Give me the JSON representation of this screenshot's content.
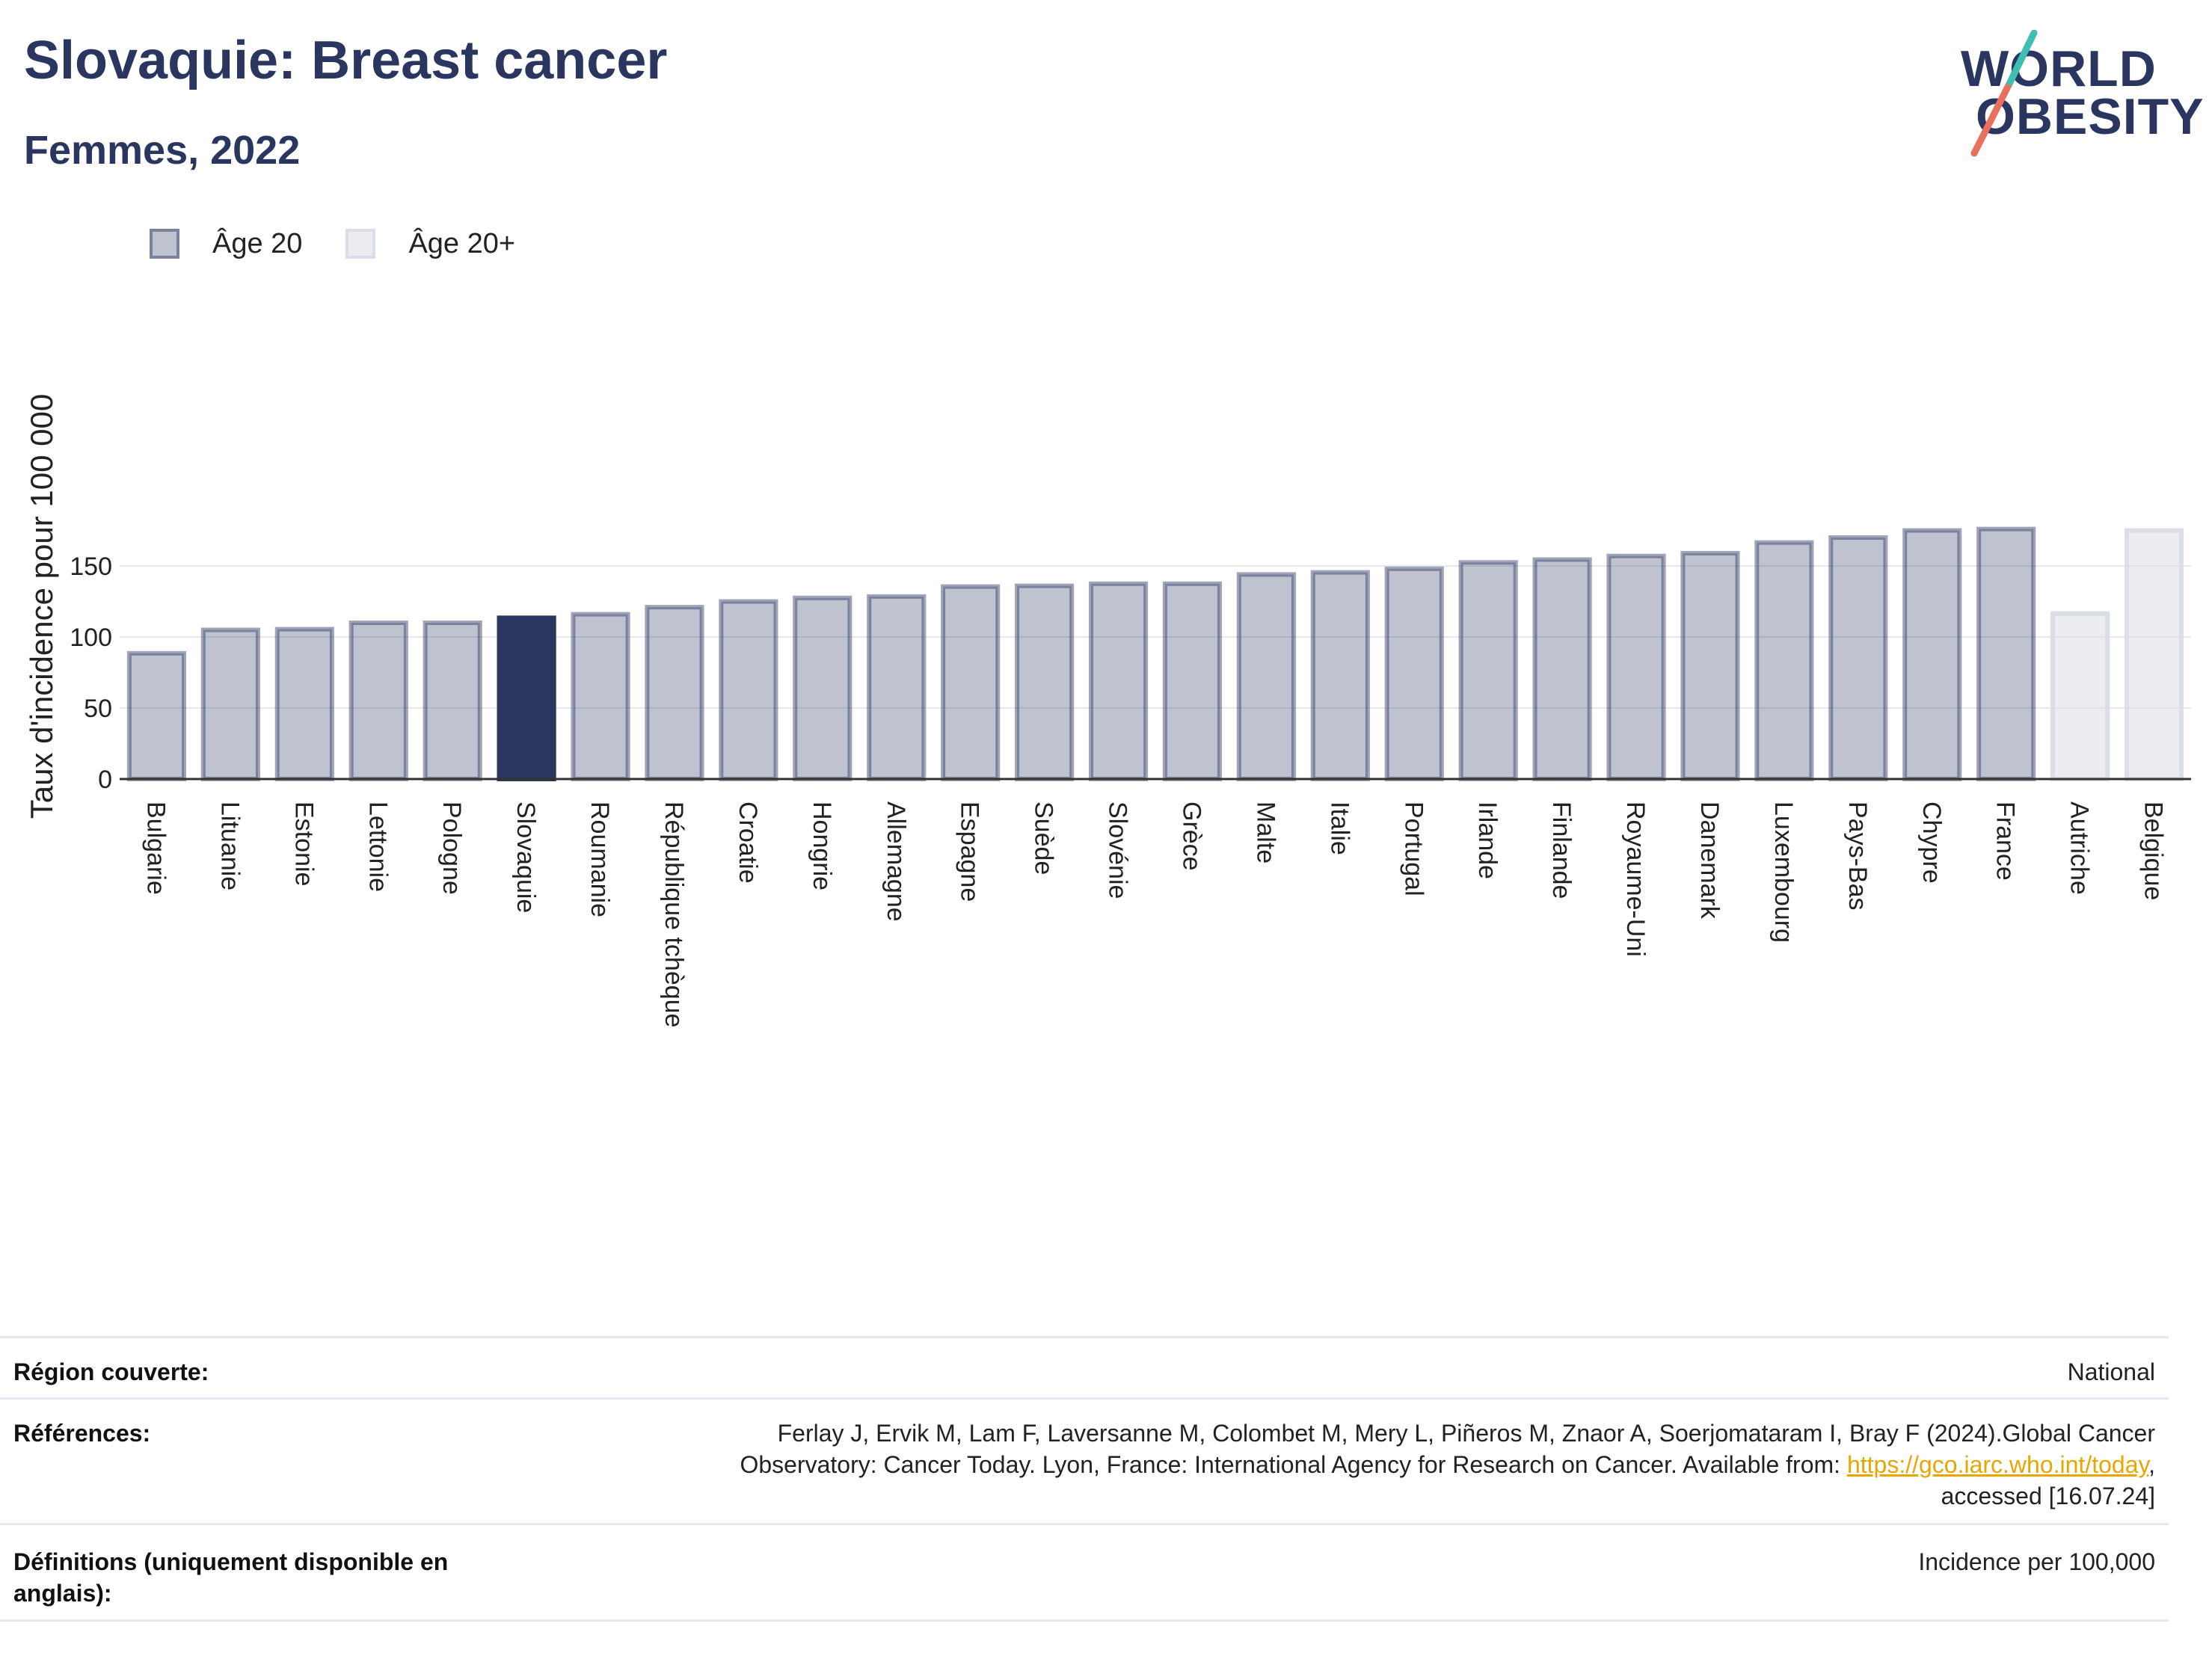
{
  "header": {
    "title": "Slovaquie: Breast cancer",
    "subtitle": "Femmes, 2022"
  },
  "logo": {
    "line1": "WORLD",
    "line2": "OBESITY",
    "accent_colors": [
      "#e8705d",
      "#3fbfb4"
    ]
  },
  "legend": [
    {
      "label": "Âge 20",
      "color": "#2b3660"
    },
    {
      "label": "Âge 20+",
      "color": "#d9dbe4"
    }
  ],
  "chart_data": {
    "type": "bar",
    "ylabel": "Taux d'incidence pour 100 000",
    "ylim": [
      0,
      180
    ],
    "yticks": [
      0,
      50,
      100,
      150
    ],
    "grid": true,
    "highlight": "Slovaquie",
    "categories": [
      "Bulgarie",
      "Lituanie",
      "Estonie",
      "Lettonie",
      "Pologne",
      "Slovaquie",
      "Roumanie",
      "République tchèque",
      "Croatie",
      "Hongrie",
      "Allemagne",
      "Espagne",
      "Suède",
      "Slovénie",
      "Grèce",
      "Malte",
      "Italie",
      "Portugal",
      "Irlande",
      "Finlande",
      "Royaume-Uni",
      "Danemark",
      "Luxembourg",
      "Pays-Bas",
      "Chypre",
      "France",
      "Autriche",
      "Belgique"
    ],
    "series": [
      {
        "name": "Âge 20",
        "values": [
          88.5,
          105,
          105.5,
          110,
          110,
          113.5,
          116,
          121,
          125,
          127.5,
          128.5,
          135.5,
          136,
          137.5,
          137.5,
          144,
          145.5,
          148,
          152.5,
          154.5,
          157,
          159,
          166.5,
          170,
          175,
          176,
          null,
          null
        ]
      },
      {
        "name": "Âge 20+",
        "values": [
          null,
          null,
          null,
          null,
          null,
          null,
          null,
          null,
          null,
          null,
          null,
          null,
          null,
          null,
          null,
          null,
          null,
          null,
          null,
          null,
          null,
          null,
          null,
          null,
          null,
          null,
          116.5,
          175
        ]
      }
    ],
    "colors": {
      "highlight": "#2b3660",
      "age20": "#2b3660",
      "age20plus": "#d9dbe4"
    }
  },
  "info": {
    "region_key": "Région couverte:",
    "region_val": "National",
    "refs_key": "Références:",
    "refs_line1": "Ferlay J, Ervik M, Lam F, Laversanne M, Colombet M, Mery L, Piñeros M, Znaor A, Soerjomataram I, Bray F (2024).Global Cancer",
    "refs_line2a": "Observatory: Cancer Today. Lyon, France: International Agency for Research on Cancer. Available from: ",
    "refs_link": "https://gco.iarc.who.int/today",
    "refs_line2b": ",",
    "refs_line3": "accessed [16.07.24]",
    "defs_key": "Définitions (uniquement disponible en anglais):",
    "defs_val": "Incidence per 100,000"
  }
}
